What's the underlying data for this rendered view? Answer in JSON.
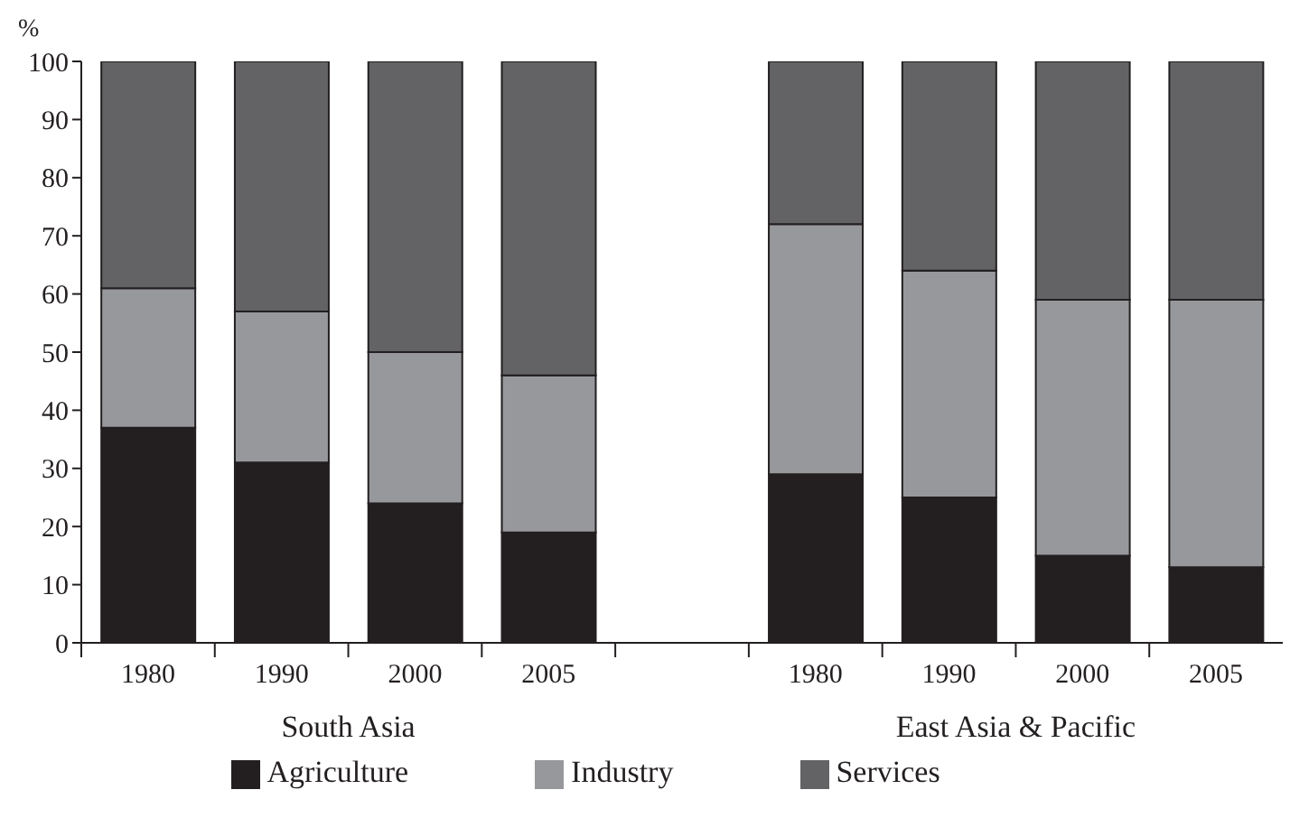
{
  "chart_data": {
    "type": "bar",
    "stacked": true,
    "ylabel": "%",
    "categories": [
      "1980",
      "1990",
      "2000",
      "2005",
      null,
      "1980",
      "1990",
      "2000",
      "2005"
    ],
    "series": [
      {
        "name": "Agriculture",
        "color": "#231f20",
        "values": [
          37,
          31,
          24,
          19,
          null,
          29,
          25,
          15,
          13
        ]
      },
      {
        "name": "Industry",
        "color": "#97989b",
        "values": [
          24,
          26,
          26,
          27,
          null,
          43,
          39,
          44,
          46
        ]
      },
      {
        "name": "Services",
        "color": "#636365",
        "values": [
          39,
          43,
          50,
          54,
          null,
          28,
          36,
          41,
          41
        ]
      }
    ],
    "annotations": [
      "South Asia",
      "East Asia & Pacific"
    ],
    "ylim": [
      0,
      100
    ],
    "yticks": [
      0,
      10,
      20,
      30,
      40,
      50,
      60,
      70,
      80,
      90,
      100
    ],
    "grid": false,
    "legend": "bottom"
  }
}
